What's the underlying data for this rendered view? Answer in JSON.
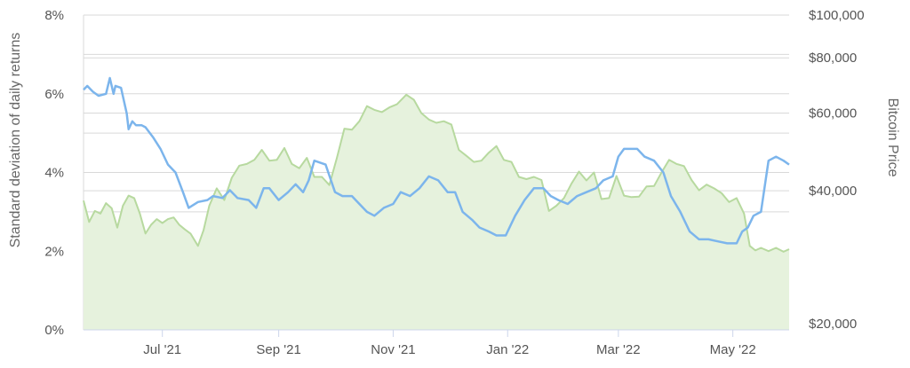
{
  "chart_data": {
    "type": "line",
    "x_ticks": [
      "Jul '21",
      "Sep '21",
      "Nov '21",
      "Jan '22",
      "Mar '22",
      "May '22"
    ],
    "x_range": [
      "2021-05-20",
      "2022-05-31"
    ],
    "left_axis": {
      "label": "Standard deviation of daily returns",
      "ticks": [
        "0%",
        "2%",
        "4%",
        "6%",
        "8%"
      ],
      "ylim": [
        0,
        8
      ]
    },
    "right_axis": {
      "label": "Bitcoin Price",
      "scale": "log",
      "ticks": [
        "$20,000",
        "$40,000",
        "$60,000",
        "$80,000",
        "$100,000"
      ],
      "ylim": [
        18000,
        100000
      ]
    },
    "grid": true,
    "series": [
      {
        "axis": "left",
        "color": "#7cb5ec",
        "x": [
          "2021-05-20",
          "2021-05-22",
          "2021-05-25",
          "2021-05-28",
          "2021-06-01",
          "2021-06-03",
          "2021-06-05",
          "2021-06-06",
          "2021-06-09",
          "2021-06-12",
          "2021-06-13",
          "2021-06-15",
          "2021-06-17",
          "2021-06-20",
          "2021-06-22",
          "2021-06-26",
          "2021-06-30",
          "2021-07-04",
          "2021-07-08",
          "2021-07-12",
          "2021-07-15",
          "2021-07-20",
          "2021-07-25",
          "2021-07-28",
          "2021-08-02",
          "2021-08-06",
          "2021-08-10",
          "2021-08-16",
          "2021-08-20",
          "2021-08-24",
          "2021-08-27",
          "2021-09-01",
          "2021-09-06",
          "2021-09-10",
          "2021-09-14",
          "2021-09-17",
          "2021-09-20",
          "2021-09-26",
          "2021-10-01",
          "2021-10-05",
          "2021-10-10",
          "2021-10-14",
          "2021-10-18",
          "2021-10-22",
          "2021-10-27",
          "2021-11-01",
          "2021-11-05",
          "2021-11-10",
          "2021-11-15",
          "2021-11-20",
          "2021-11-25",
          "2021-11-30",
          "2021-12-04",
          "2021-12-08",
          "2021-12-13",
          "2021-12-17",
          "2021-12-22",
          "2021-12-26",
          "2021-12-31",
          "2022-01-05",
          "2022-01-10",
          "2022-01-15",
          "2022-01-20",
          "2022-01-24",
          "2022-01-28",
          "2022-02-02",
          "2022-02-07",
          "2022-02-12",
          "2022-02-17",
          "2022-02-21",
          "2022-02-26",
          "2022-03-01",
          "2022-03-04",
          "2022-03-07",
          "2022-03-11",
          "2022-03-15",
          "2022-03-20",
          "2022-03-25",
          "2022-03-29",
          "2022-04-03",
          "2022-04-08",
          "2022-04-13",
          "2022-04-18",
          "2022-04-23",
          "2022-04-28",
          "2022-05-03",
          "2022-05-06",
          "2022-05-09",
          "2022-05-12",
          "2022-05-16",
          "2022-05-20",
          "2022-05-24",
          "2022-05-28",
          "2022-05-31"
        ],
        "values": [
          6.1,
          6.2,
          6.05,
          5.95,
          6.0,
          6.4,
          6.0,
          6.2,
          6.15,
          5.5,
          5.1,
          5.3,
          5.2,
          5.2,
          5.15,
          4.9,
          4.6,
          4.2,
          4.0,
          3.5,
          3.1,
          3.25,
          3.3,
          3.4,
          3.35,
          3.55,
          3.35,
          3.3,
          3.1,
          3.6,
          3.6,
          3.3,
          3.5,
          3.7,
          3.5,
          3.8,
          4.3,
          4.2,
          3.5,
          3.4,
          3.4,
          3.2,
          3.0,
          2.9,
          3.1,
          3.2,
          3.5,
          3.4,
          3.6,
          3.9,
          3.8,
          3.5,
          3.5,
          3.0,
          2.8,
          2.6,
          2.5,
          2.4,
          2.4,
          2.9,
          3.3,
          3.6,
          3.6,
          3.4,
          3.3,
          3.2,
          3.4,
          3.5,
          3.6,
          3.8,
          3.9,
          4.4,
          4.6,
          4.6,
          4.6,
          4.4,
          4.3,
          4.0,
          3.4,
          3.0,
          2.5,
          2.3,
          2.3,
          2.25,
          2.2,
          2.2,
          2.5,
          2.6,
          2.9,
          3.0,
          4.3,
          4.4,
          4.3,
          4.2
        ]
      },
      {
        "axis": "right",
        "color": "#b7d99f",
        "fill": "#e6f2dd",
        "x": [
          "2021-05-20",
          "2021-05-23",
          "2021-05-26",
          "2021-05-29",
          "2021-06-01",
          "2021-06-04",
          "2021-06-07",
          "2021-06-10",
          "2021-06-13",
          "2021-06-16",
          "2021-06-19",
          "2021-06-22",
          "2021-06-25",
          "2021-06-28",
          "2021-07-01",
          "2021-07-04",
          "2021-07-07",
          "2021-07-10",
          "2021-07-13",
          "2021-07-16",
          "2021-07-20",
          "2021-07-23",
          "2021-07-26",
          "2021-07-30",
          "2021-08-03",
          "2021-08-07",
          "2021-08-11",
          "2021-08-15",
          "2021-08-19",
          "2021-08-23",
          "2021-08-27",
          "2021-08-31",
          "2021-09-04",
          "2021-09-08",
          "2021-09-12",
          "2021-09-16",
          "2021-09-20",
          "2021-09-24",
          "2021-09-28",
          "2021-10-02",
          "2021-10-06",
          "2021-10-10",
          "2021-10-14",
          "2021-10-18",
          "2021-10-22",
          "2021-10-26",
          "2021-10-30",
          "2021-11-03",
          "2021-11-08",
          "2021-11-12",
          "2021-11-16",
          "2021-11-20",
          "2021-11-24",
          "2021-11-28",
          "2021-12-02",
          "2021-12-06",
          "2021-12-10",
          "2021-12-14",
          "2021-12-18",
          "2021-12-22",
          "2021-12-26",
          "2021-12-30",
          "2022-01-03",
          "2022-01-07",
          "2022-01-11",
          "2022-01-15",
          "2022-01-19",
          "2022-01-23",
          "2022-01-27",
          "2022-01-31",
          "2022-02-04",
          "2022-02-08",
          "2022-02-12",
          "2022-02-16",
          "2022-02-20",
          "2022-02-24",
          "2022-02-28",
          "2022-03-04",
          "2022-03-08",
          "2022-03-12",
          "2022-03-16",
          "2022-03-20",
          "2022-03-24",
          "2022-03-28",
          "2022-04-01",
          "2022-04-05",
          "2022-04-09",
          "2022-04-13",
          "2022-04-17",
          "2022-04-21",
          "2022-04-25",
          "2022-04-29",
          "2022-05-03",
          "2022-05-07",
          "2022-05-10",
          "2022-05-13",
          "2022-05-16",
          "2022-05-20",
          "2022-05-24",
          "2022-05-28",
          "2022-05-31"
        ],
        "values": [
          38000,
          34000,
          36000,
          35500,
          37500,
          36500,
          33000,
          37000,
          39000,
          38500,
          35500,
          32000,
          33500,
          34500,
          33800,
          34500,
          34800,
          33500,
          32700,
          32000,
          30000,
          32600,
          37000,
          40500,
          38100,
          42800,
          45600,
          46000,
          47000,
          49500,
          46800,
          47000,
          50000,
          46000,
          45000,
          47500,
          43000,
          43000,
          41200,
          47500,
          55300,
          55000,
          57500,
          62200,
          61000,
          60300,
          61800,
          62800,
          66000,
          64300,
          60000,
          58000,
          57000,
          57500,
          56500,
          49500,
          48000,
          46500,
          46800,
          48800,
          50500,
          47000,
          46500,
          43000,
          42500,
          43000,
          42300,
          36000,
          37000,
          38500,
          41500,
          44200,
          42200,
          44000,
          38300,
          38500,
          43200,
          39000,
          38700,
          38800,
          40900,
          41000,
          44000,
          47000,
          46000,
          45500,
          42300,
          40100,
          41300,
          40500,
          39500,
          37700,
          38500,
          35500,
          30000,
          29300,
          29700,
          29200,
          29700,
          29100,
          29500
        ]
      }
    ]
  }
}
